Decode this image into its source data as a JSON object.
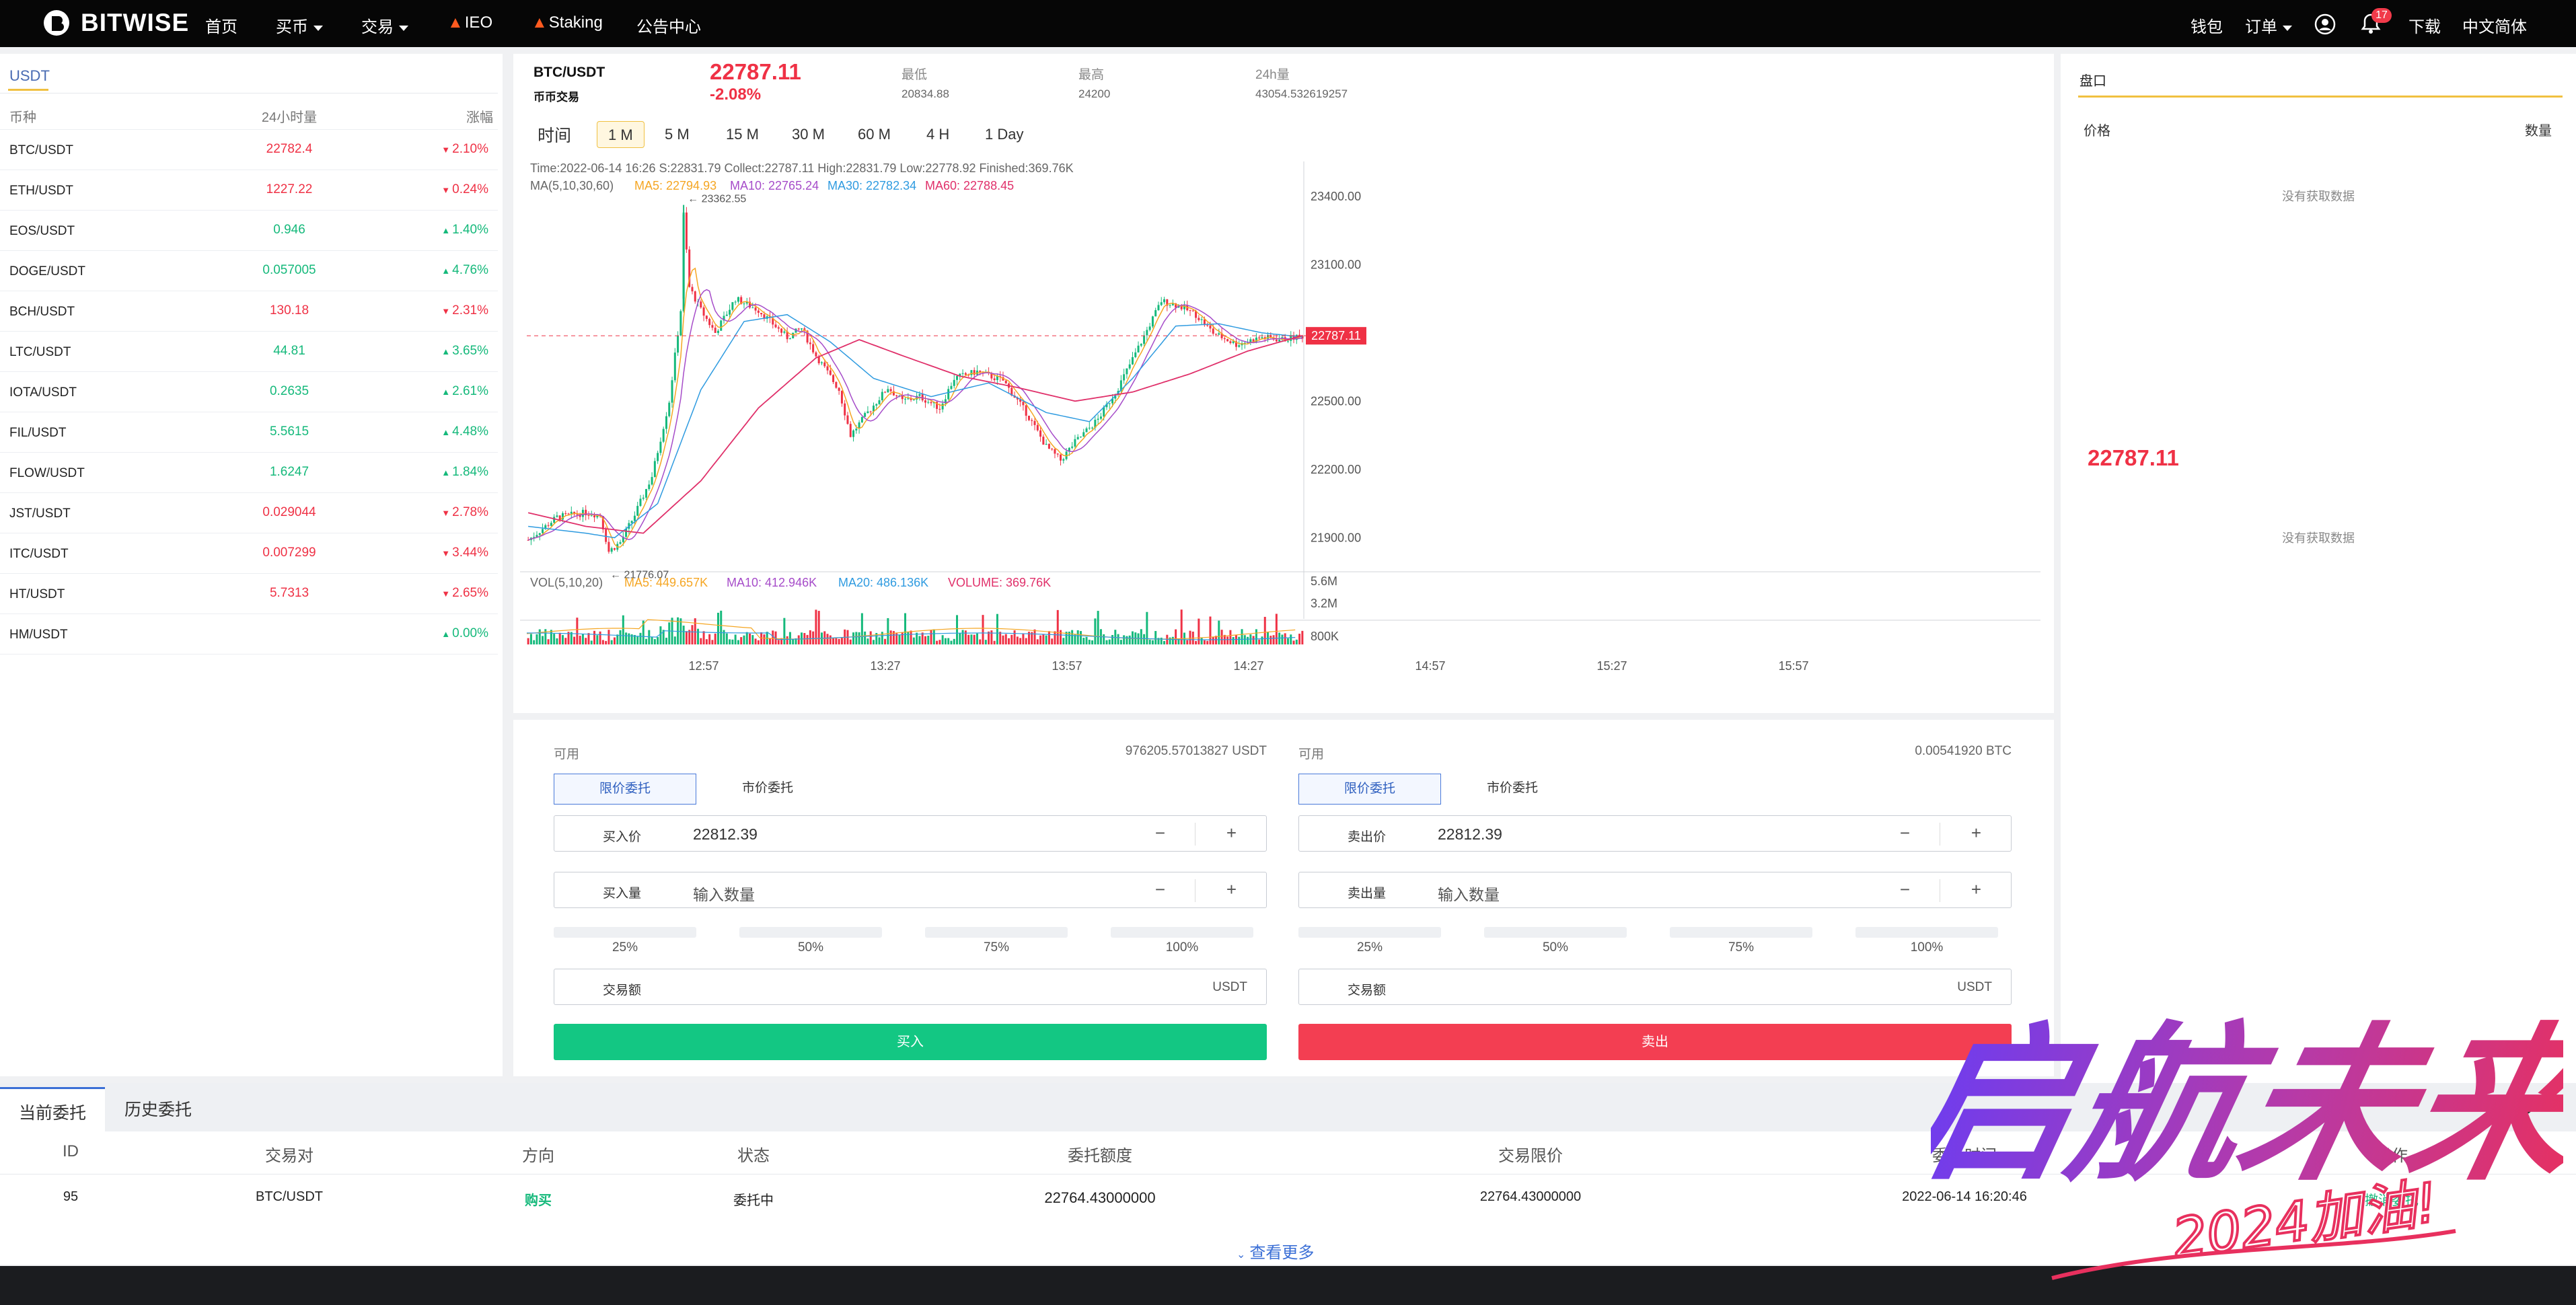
{
  "nav": {
    "brand": "BITWISE",
    "items": [
      "首页",
      "买币",
      "交易",
      "IEO",
      "Staking",
      "公告中心"
    ],
    "right": {
      "wallet": "钱包",
      "orders": "订单",
      "badge": "17",
      "download": "下载",
      "language": "中文简体"
    }
  },
  "market": {
    "tab": "USDT",
    "headers": {
      "symbol": "币种",
      "volume": "24小时量",
      "change": "涨幅"
    },
    "rows": [
      {
        "symbol": "BTC/USDT",
        "volume": "22782.4",
        "change": "2.10%",
        "dir": "down"
      },
      {
        "symbol": "ETH/USDT",
        "volume": "1227.22",
        "change": "0.24%",
        "dir": "down"
      },
      {
        "symbol": "EOS/USDT",
        "volume": "0.946",
        "change": "1.40%",
        "dir": "up"
      },
      {
        "symbol": "DOGE/USDT",
        "volume": "0.057005",
        "change": "4.76%",
        "dir": "up"
      },
      {
        "symbol": "BCH/USDT",
        "volume": "130.18",
        "change": "2.31%",
        "dir": "down"
      },
      {
        "symbol": "LTC/USDT",
        "volume": "44.81",
        "change": "3.65%",
        "dir": "up"
      },
      {
        "symbol": "IOTA/USDT",
        "volume": "0.2635",
        "change": "2.61%",
        "dir": "up"
      },
      {
        "symbol": "FIL/USDT",
        "volume": "5.5615",
        "change": "4.48%",
        "dir": "up"
      },
      {
        "symbol": "FLOW/USDT",
        "volume": "1.6247",
        "change": "1.84%",
        "dir": "up"
      },
      {
        "symbol": "JST/USDT",
        "volume": "0.029044",
        "change": "2.78%",
        "dir": "down"
      },
      {
        "symbol": "ITC/USDT",
        "volume": "0.007299",
        "change": "3.44%",
        "dir": "down"
      },
      {
        "symbol": "HT/USDT",
        "volume": "5.7313",
        "change": "2.65%",
        "dir": "down"
      },
      {
        "symbol": "HM/USDT",
        "volume": "",
        "change": "0.00%",
        "dir": "up"
      }
    ]
  },
  "ticker": {
    "pair": "BTC/USDT",
    "sub": "币币交易",
    "price": "22787.11",
    "change": "-2.08%",
    "low_label": "最低",
    "low": "20834.88",
    "high_label": "最高",
    "high": "24200",
    "vol_label": "24h量",
    "vol": "43054.532619257"
  },
  "timeframes": {
    "label": "时间",
    "items": [
      "1 M",
      "5 M",
      "15 M",
      "30 M",
      "60 M",
      "4 H",
      "1 Day"
    ],
    "active": "1 M"
  },
  "chart_info": {
    "ohlc": "Time:2022-06-14 16:26    S:22831.79    Collect:22787.11    High:22831.79    Low:22778.92    Finished:369.76K",
    "ma_label": "MA(5,10,30,60)",
    "ma5": "MA5: 22794.93",
    "ma10": "MA10: 22765.24",
    "ma30": "MA30: 22782.34",
    "ma60": "MA60: 22788.45",
    "max_tag": "23362.55",
    "min_tag": "21776.07",
    "price_tag": "22787.11",
    "vol_label": "VOL(5,10,20)",
    "vol_ma5": "MA5: 449.657K",
    "vol_ma10": "MA10: 412.946K",
    "vol_ma20": "MA20: 486.136K",
    "volume": "VOLUME: 369.76K"
  },
  "chart_data": {
    "type": "candlestick",
    "y_ticks": [
      "23400.00",
      "23100.00",
      "22800.00",
      "22500.00",
      "22200.00",
      "21900.00"
    ],
    "y_range": [
      21780,
      23420
    ],
    "vol_ticks": [
      "5.6M",
      "3.2M",
      "800K"
    ],
    "x_ticks": [
      "12:57",
      "13:27",
      "13:57",
      "14:27",
      "14:57",
      "15:27",
      "15:57"
    ],
    "close_anchors": [
      [
        0,
        21890
      ],
      [
        10,
        21990
      ],
      [
        20,
        22010
      ],
      [
        25,
        22000
      ],
      [
        28,
        21840
      ],
      [
        32,
        21880
      ],
      [
        37,
        22000
      ],
      [
        43,
        22170
      ],
      [
        49,
        22500
      ],
      [
        53,
        22900
      ],
      [
        54,
        23320
      ],
      [
        56,
        23000
      ],
      [
        60,
        22900
      ],
      [
        65,
        22800
      ],
      [
        72,
        22950
      ],
      [
        80,
        22900
      ],
      [
        90,
        22780
      ],
      [
        95,
        22820
      ],
      [
        100,
        22700
      ],
      [
        108,
        22550
      ],
      [
        112,
        22350
      ],
      [
        118,
        22450
      ],
      [
        125,
        22560
      ],
      [
        130,
        22500
      ],
      [
        136,
        22520
      ],
      [
        143,
        22470
      ],
      [
        148,
        22600
      ],
      [
        156,
        22630
      ],
      [
        165,
        22590
      ],
      [
        173,
        22450
      ],
      [
        180,
        22300
      ],
      [
        185,
        22240
      ],
      [
        190,
        22320
      ],
      [
        198,
        22420
      ],
      [
        205,
        22560
      ],
      [
        213,
        22760
      ],
      [
        220,
        22940
      ],
      [
        226,
        22920
      ],
      [
        232,
        22880
      ],
      [
        238,
        22800
      ],
      [
        246,
        22750
      ],
      [
        255,
        22780
      ],
      [
        262,
        22770
      ],
      [
        269,
        22787
      ]
    ],
    "ma60_anchors": [
      [
        0,
        22010
      ],
      [
        20,
        21950
      ],
      [
        40,
        21920
      ],
      [
        60,
        22150
      ],
      [
        80,
        22470
      ],
      [
        100,
        22690
      ],
      [
        115,
        22770
      ],
      [
        130,
        22700
      ],
      [
        150,
        22610
      ],
      [
        170,
        22560
      ],
      [
        190,
        22500
      ],
      [
        210,
        22540
      ],
      [
        230,
        22620
      ],
      [
        250,
        22720
      ],
      [
        269,
        22788
      ]
    ],
    "ma30_anchors": [
      [
        0,
        21950
      ],
      [
        20,
        21920
      ],
      [
        30,
        21900
      ],
      [
        45,
        22050
      ],
      [
        60,
        22550
      ],
      [
        75,
        22850
      ],
      [
        90,
        22880
      ],
      [
        105,
        22760
      ],
      [
        120,
        22600
      ],
      [
        140,
        22520
      ],
      [
        160,
        22580
      ],
      [
        180,
        22450
      ],
      [
        195,
        22410
      ],
      [
        210,
        22600
      ],
      [
        225,
        22830
      ],
      [
        240,
        22840
      ],
      [
        255,
        22800
      ],
      [
        269,
        22782
      ]
    ],
    "candle_count": 270
  },
  "form": {
    "buy": {
      "avail_label": "可用",
      "avail": "976205.57013827 USDT",
      "mode_limit": "限价委托",
      "mode_market": "市价委托",
      "price_label": "买入价",
      "price": "22812.39",
      "qty_label": "买入量",
      "qty_placeholder": "输入数量",
      "amount_label": "交易额",
      "unit": "USDT",
      "submit": "买入"
    },
    "sell": {
      "avail_label": "可用",
      "avail": "0.00541920 BTC",
      "mode_limit": "限价委托",
      "mode_market": "市价委托",
      "price_label": "卖出价",
      "price": "22812.39",
      "qty_label": "卖出量",
      "qty_placeholder": "输入数量",
      "amount_label": "交易额",
      "unit": "USDT",
      "submit": "卖出"
    },
    "minus": "−",
    "plus": "+",
    "percents": [
      "25%",
      "50%",
      "75%",
      "100%"
    ]
  },
  "book": {
    "title": "盘口",
    "price_col": "价格",
    "qty_col": "数量",
    "empty": "没有获取数据",
    "mid_price": "22787.11"
  },
  "orders": {
    "tabs": [
      "当前委托",
      "历史委托"
    ],
    "headers": [
      "ID",
      "交易对",
      "方向",
      "状态",
      "委托额度",
      "交易限价",
      "委托时间",
      "操作"
    ],
    "row": {
      "id": "95",
      "pair": "BTC/USDT",
      "side": "购买",
      "status": "委托中",
      "amount": "22764.43000000",
      "limit": "22764.43000000",
      "time": "2022-06-14 16:20:46",
      "action": "撤消委托"
    },
    "more": "查看更多"
  },
  "watermark": {
    "main": "启航未来",
    "sub": "2024加油!"
  },
  "colors": {
    "up": "#15b97b",
    "down": "#ef3145",
    "ma5": "#f5a623",
    "ma10": "#a64cc9",
    "ma30": "#2f9be0",
    "ma60": "#e0306a",
    "buy": "#13c783",
    "sell": "#f33e52"
  }
}
